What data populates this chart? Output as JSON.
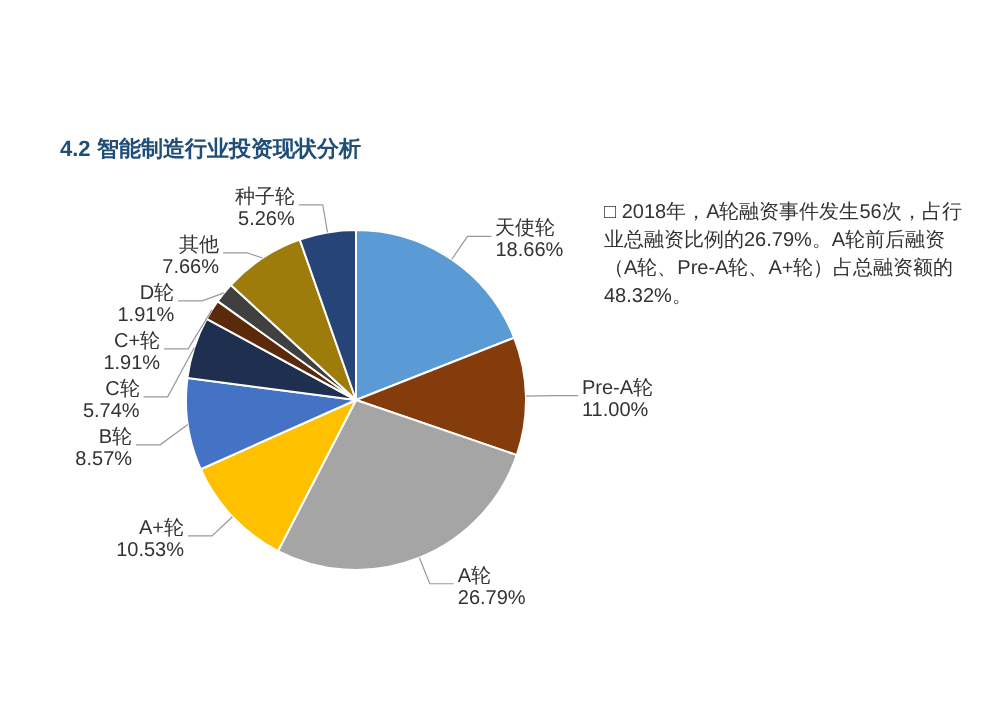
{
  "chart_data": {
    "type": "pie",
    "title": "4.2 智能制造行业投资现状分析",
    "categories": [
      "天使轮",
      "Pre-A轮",
      "A轮",
      "A+轮",
      "B轮",
      "C轮",
      "C+轮",
      "D轮",
      "其他",
      "种子轮"
    ],
    "values": [
      18.66,
      11.0,
      26.79,
      10.53,
      8.57,
      5.74,
      1.91,
      1.91,
      7.66,
      5.26
    ],
    "colors": [
      "#5b9bd5",
      "#843c0c",
      "#a5a5a5",
      "#ffc000",
      "#4472c4",
      "#1f2f4f",
      "#5a2a0a",
      "#404040",
      "#9e7c0c",
      "#264478"
    ],
    "value_labels": [
      "18.66%",
      "11.00%",
      "26.79%",
      "10.53%",
      "8.57%",
      "5.74%",
      "1.91%",
      "1.91%",
      "7.66%",
      "5.26%"
    ],
    "annotations": [
      "□ 2018年，A轮融资事件发生56次，占行业总融资比例的26.79%。A轮前后融资（A轮、Pre-A轮、A+轮）占总融资额的48.32%。"
    ]
  }
}
